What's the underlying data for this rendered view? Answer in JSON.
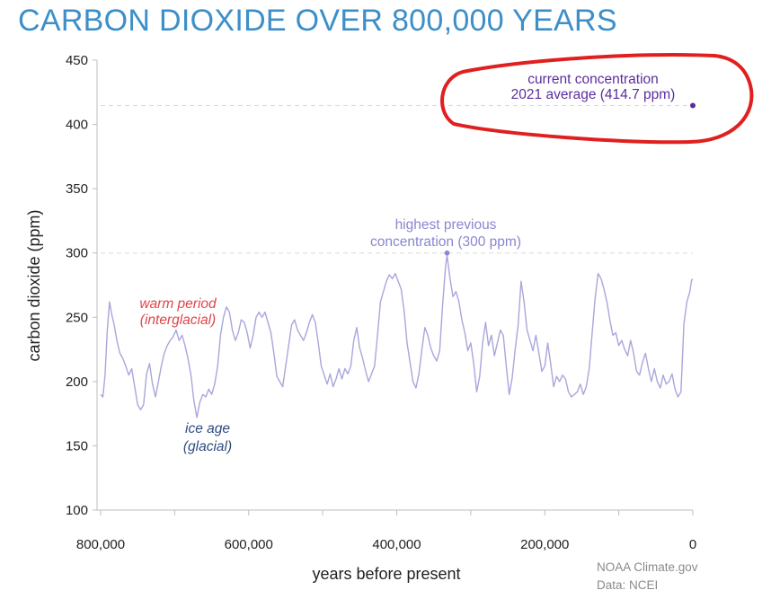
{
  "chart_data": {
    "type": "line",
    "title": "CARBON DIOXIDE OVER 800,000 YEARS",
    "xlabel": "years before present",
    "ylabel": "carbon dioxide (ppm)",
    "xlim": [
      800000,
      0
    ],
    "ylim": [
      100,
      450
    ],
    "x_ticks": [
      {
        "value": 800000,
        "label": "800,000"
      },
      {
        "value": 600000,
        "label": "600,000"
      },
      {
        "value": 400000,
        "label": "400,000"
      },
      {
        "value": 200000,
        "label": "200,000"
      },
      {
        "value": 0,
        "label": "0"
      }
    ],
    "y_ticks": [
      {
        "value": 100,
        "label": "100"
      },
      {
        "value": 150,
        "label": "150"
      },
      {
        "value": 200,
        "label": "200"
      },
      {
        "value": 250,
        "label": "250"
      },
      {
        "value": 300,
        "label": "300"
      },
      {
        "value": 350,
        "label": "350"
      },
      {
        "value": 400,
        "label": "400"
      },
      {
        "value": 450,
        "label": "450"
      }
    ],
    "series": [
      {
        "color": "#a9a6dc",
        "points": [
          [
            800000,
            190
          ],
          [
            797000,
            188
          ],
          [
            794000,
            205
          ],
          [
            791000,
            240
          ],
          [
            788000,
            262
          ],
          [
            785000,
            252
          ],
          [
            782000,
            245
          ],
          [
            778000,
            232
          ],
          [
            774000,
            222
          ],
          [
            770000,
            218
          ],
          [
            766000,
            212
          ],
          [
            762000,
            205
          ],
          [
            758000,
            210
          ],
          [
            754000,
            196
          ],
          [
            750000,
            182
          ],
          [
            746000,
            178
          ],
          [
            742000,
            182
          ],
          [
            738000,
            206
          ],
          [
            734000,
            214
          ],
          [
            730000,
            198
          ],
          [
            726000,
            188
          ],
          [
            722000,
            200
          ],
          [
            718000,
            212
          ],
          [
            714000,
            222
          ],
          [
            710000,
            228
          ],
          [
            706000,
            232
          ],
          [
            702000,
            235
          ],
          [
            698000,
            240
          ],
          [
            694000,
            232
          ],
          [
            690000,
            236
          ],
          [
            686000,
            228
          ],
          [
            682000,
            218
          ],
          [
            678000,
            205
          ],
          [
            674000,
            185
          ],
          [
            670000,
            172
          ],
          [
            666000,
            184
          ],
          [
            662000,
            190
          ],
          [
            658000,
            188
          ],
          [
            654000,
            194
          ],
          [
            650000,
            190
          ],
          [
            646000,
            198
          ],
          [
            642000,
            212
          ],
          [
            638000,
            236
          ],
          [
            634000,
            250
          ],
          [
            630000,
            258
          ],
          [
            626000,
            254
          ],
          [
            622000,
            240
          ],
          [
            618000,
            232
          ],
          [
            614000,
            238
          ],
          [
            610000,
            248
          ],
          [
            606000,
            246
          ],
          [
            602000,
            238
          ],
          [
            598000,
            226
          ],
          [
            594000,
            236
          ],
          [
            590000,
            250
          ],
          [
            586000,
            254
          ],
          [
            582000,
            250
          ],
          [
            578000,
            254
          ],
          [
            574000,
            246
          ],
          [
            570000,
            238
          ],
          [
            566000,
            222
          ],
          [
            562000,
            204
          ],
          [
            558000,
            200
          ],
          [
            554000,
            196
          ],
          [
            550000,
            212
          ],
          [
            546000,
            228
          ],
          [
            542000,
            244
          ],
          [
            538000,
            248
          ],
          [
            534000,
            240
          ],
          [
            530000,
            236
          ],
          [
            526000,
            232
          ],
          [
            522000,
            238
          ],
          [
            518000,
            246
          ],
          [
            514000,
            252
          ],
          [
            510000,
            246
          ],
          [
            506000,
            230
          ],
          [
            502000,
            212
          ],
          [
            498000,
            205
          ],
          [
            494000,
            198
          ],
          [
            490000,
            206
          ],
          [
            486000,
            196
          ],
          [
            482000,
            202
          ],
          [
            478000,
            210
          ],
          [
            474000,
            202
          ],
          [
            470000,
            210
          ],
          [
            466000,
            206
          ],
          [
            462000,
            212
          ],
          [
            458000,
            232
          ],
          [
            454000,
            242
          ],
          [
            450000,
            226
          ],
          [
            446000,
            218
          ],
          [
            442000,
            208
          ],
          [
            438000,
            200
          ],
          [
            434000,
            206
          ],
          [
            430000,
            212
          ],
          [
            426000,
            236
          ],
          [
            422000,
            262
          ],
          [
            418000,
            270
          ],
          [
            414000,
            278
          ],
          [
            410000,
            283
          ],
          [
            406000,
            280
          ],
          [
            402000,
            284
          ],
          [
            398000,
            278
          ],
          [
            394000,
            272
          ],
          [
            390000,
            255
          ],
          [
            386000,
            230
          ],
          [
            382000,
            215
          ],
          [
            378000,
            200
          ],
          [
            374000,
            195
          ],
          [
            370000,
            206
          ],
          [
            366000,
            225
          ],
          [
            362000,
            242
          ],
          [
            358000,
            236
          ],
          [
            354000,
            226
          ],
          [
            350000,
            220
          ],
          [
            346000,
            216
          ],
          [
            342000,
            224
          ],
          [
            338000,
            260
          ],
          [
            334000,
            290
          ],
          [
            332000,
            298
          ],
          [
            328000,
            280
          ],
          [
            324000,
            266
          ],
          [
            320000,
            270
          ],
          [
            316000,
            262
          ],
          [
            312000,
            248
          ],
          [
            308000,
            238
          ],
          [
            304000,
            224
          ],
          [
            300000,
            230
          ],
          [
            296000,
            214
          ],
          [
            292000,
            192
          ],
          [
            288000,
            204
          ],
          [
            284000,
            230
          ],
          [
            280000,
            246
          ],
          [
            276000,
            228
          ],
          [
            272000,
            236
          ],
          [
            268000,
            220
          ],
          [
            264000,
            230
          ],
          [
            260000,
            240
          ],
          [
            256000,
            236
          ],
          [
            252000,
            212
          ],
          [
            248000,
            190
          ],
          [
            244000,
            203
          ],
          [
            240000,
            225
          ],
          [
            236000,
            244
          ],
          [
            232000,
            278
          ],
          [
            228000,
            262
          ],
          [
            224000,
            240
          ],
          [
            220000,
            232
          ],
          [
            216000,
            224
          ],
          [
            212000,
            236
          ],
          [
            208000,
            222
          ],
          [
            204000,
            208
          ],
          [
            200000,
            212
          ],
          [
            196000,
            230
          ],
          [
            192000,
            214
          ],
          [
            188000,
            196
          ],
          [
            184000,
            204
          ],
          [
            180000,
            200
          ],
          [
            176000,
            205
          ],
          [
            172000,
            202
          ],
          [
            168000,
            192
          ],
          [
            164000,
            188
          ],
          [
            160000,
            190
          ],
          [
            156000,
            192
          ],
          [
            152000,
            198
          ],
          [
            148000,
            190
          ],
          [
            144000,
            196
          ],
          [
            140000,
            210
          ],
          [
            136000,
            238
          ],
          [
            132000,
            265
          ],
          [
            128000,
            284
          ],
          [
            124000,
            280
          ],
          [
            120000,
            272
          ],
          [
            116000,
            262
          ],
          [
            112000,
            248
          ],
          [
            108000,
            236
          ],
          [
            104000,
            238
          ],
          [
            100000,
            228
          ],
          [
            96000,
            232
          ],
          [
            92000,
            225
          ],
          [
            88000,
            220
          ],
          [
            84000,
            232
          ],
          [
            80000,
            222
          ],
          [
            76000,
            208
          ],
          [
            72000,
            205
          ],
          [
            68000,
            215
          ],
          [
            64000,
            222
          ],
          [
            60000,
            210
          ],
          [
            56000,
            200
          ],
          [
            52000,
            210
          ],
          [
            48000,
            200
          ],
          [
            44000,
            195
          ],
          [
            40000,
            205
          ],
          [
            36000,
            198
          ],
          [
            32000,
            200
          ],
          [
            28000,
            206
          ],
          [
            24000,
            194
          ],
          [
            20000,
            188
          ],
          [
            16000,
            192
          ],
          [
            12000,
            245
          ],
          [
            8000,
            262
          ],
          [
            4000,
            270
          ],
          [
            2000,
            278
          ],
          [
            500,
            280
          ]
        ]
      }
    ],
    "annotations": {
      "current_line1": "current concentration",
      "current_line2": "2021 average (414.7 ppm)",
      "current_point": {
        "x": 0,
        "y": 414.7
      },
      "current_reference_y": 414.7,
      "highest_line1": "highest previous",
      "highest_line2": "concentration (300 ppm)",
      "highest_point": {
        "x": 332000,
        "y": 300
      },
      "highest_reference_y": 300,
      "warm_line1": "warm period",
      "warm_line2": "(interglacial)",
      "ice_line1": "ice age",
      "ice_line2": "(glacial)"
    },
    "colors": {
      "title": "#3d8fc9",
      "series": "#a9a6dc",
      "current": "#5b2d9e",
      "highest": "#8a86d0",
      "warm": "#e0454a",
      "ice": "#2e4e80",
      "highlight_ring": "#e02020",
      "reference_line": "#d9d9d9"
    },
    "grid": false,
    "legend": "none",
    "credit_line1": "NOAA Climate.gov",
    "credit_line2": "Data: NCEI"
  }
}
